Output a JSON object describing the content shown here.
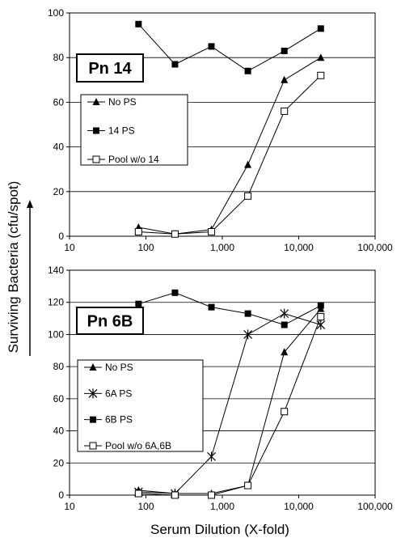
{
  "figure": {
    "ylabel": "Surviving Bacteria (cfu/spot)",
    "xlabel": "Serum Dilution (X-fold)"
  },
  "chart_data": [
    {
      "type": "line",
      "title": "Pn 14",
      "x_scale": "log",
      "xlim": [
        10,
        100000
      ],
      "xticks": [
        "10",
        "100",
        "1,000",
        "10,000",
        "100,000"
      ],
      "xtick_values": [
        10,
        100,
        1000,
        10000,
        100000
      ],
      "ylim": [
        0,
        100
      ],
      "yticks": [
        "0",
        "20",
        "40",
        "60",
        "80",
        "100"
      ],
      "ytick_values": [
        0,
        20,
        40,
        60,
        80,
        100
      ],
      "grid": "horizontal",
      "legend_position": "left",
      "x": [
        80,
        240,
        720,
        2160,
        6480,
        19440
      ],
      "series": [
        {
          "name": "No PS",
          "marker": "filled-triangle",
          "values": [
            4,
            1,
            3,
            32,
            70,
            80
          ]
        },
        {
          "name": "14 PS",
          "marker": "filled-square",
          "values": [
            95,
            77,
            85,
            74,
            83,
            93
          ]
        },
        {
          "name": "Pool w/o 14",
          "marker": "open-square",
          "values": [
            2,
            1,
            2,
            18,
            56,
            72
          ]
        }
      ]
    },
    {
      "type": "line",
      "title": "Pn 6B",
      "x_scale": "log",
      "xlim": [
        10,
        100000
      ],
      "xticks": [
        "10",
        "100",
        "1,000",
        "10,000",
        "100,000"
      ],
      "xtick_values": [
        10,
        100,
        1000,
        10000,
        100000
      ],
      "ylim": [
        0,
        140
      ],
      "yticks": [
        "0",
        "20",
        "40",
        "60",
        "80",
        "100",
        "120",
        "140"
      ],
      "ytick_values": [
        0,
        20,
        40,
        60,
        80,
        100,
        120,
        140
      ],
      "grid": "horizontal",
      "legend_position": "left",
      "x": [
        80,
        240,
        720,
        2160,
        6480,
        19440
      ],
      "series": [
        {
          "name": "No PS",
          "marker": "filled-triangle",
          "values": [
            3,
            1,
            1,
            6,
            89,
            116
          ]
        },
        {
          "name": "6A PS",
          "marker": "asterisk",
          "values": [
            2,
            1,
            24,
            100,
            113,
            106
          ]
        },
        {
          "name": "6B PS",
          "marker": "filled-square",
          "values": [
            119,
            126,
            117,
            113,
            106,
            118
          ]
        },
        {
          "name": "Pool w/o 6A,6B",
          "marker": "open-square",
          "values": [
            1,
            0,
            0,
            6,
            52,
            111
          ]
        }
      ]
    }
  ]
}
